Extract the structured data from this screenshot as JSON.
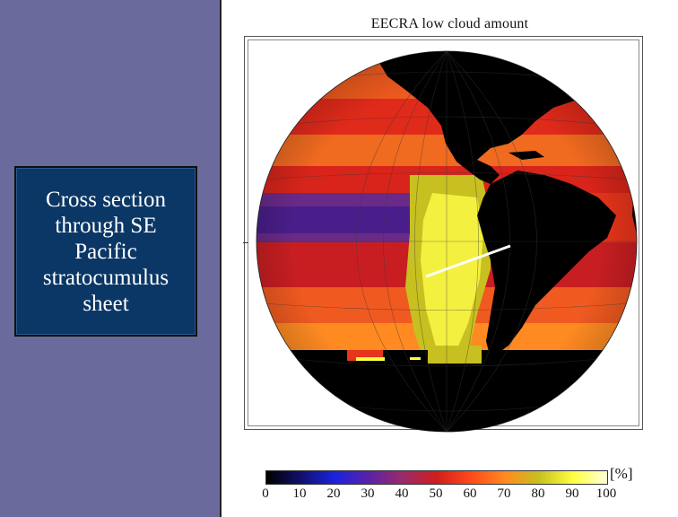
{
  "caption": "Cross section through SE Pacific stratocumulus sheet",
  "figure": {
    "title": "EECRA low cloud amount",
    "colorbar": {
      "unit": "[%]",
      "ticks": [
        "0",
        "10",
        "20",
        "30",
        "40",
        "50",
        "60",
        "70",
        "80",
        "90",
        "100"
      ],
      "colors": [
        "#000000",
        "#10106a",
        "#1a22e0",
        "#5a22a8",
        "#9a2a6a",
        "#d01e1e",
        "#ff4a1a",
        "#ff8a20",
        "#c8c020",
        "#ffff40",
        "#ffffd8"
      ]
    }
  },
  "map": {
    "projection": "orthographic",
    "land_color": "#000000",
    "cross_section_color": "#ffffff"
  }
}
